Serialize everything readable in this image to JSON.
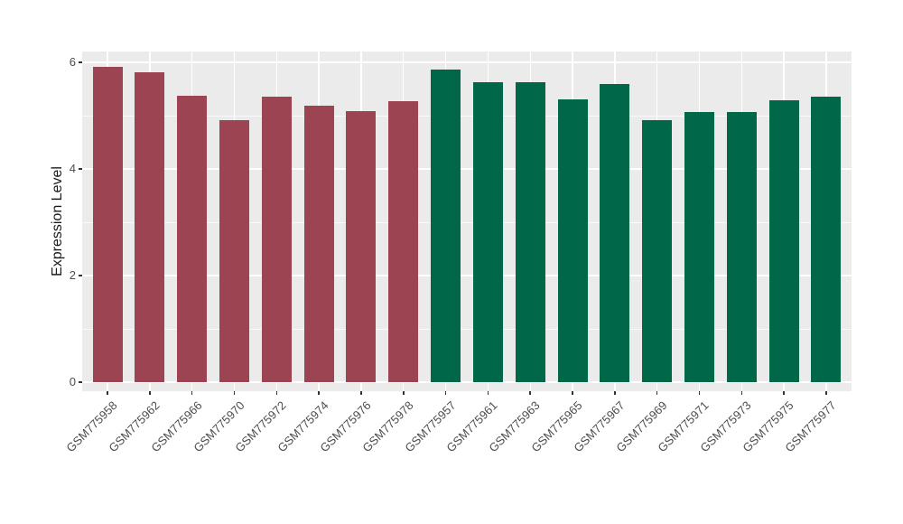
{
  "chart_data": {
    "type": "bar",
    "title": "",
    "xlabel": "",
    "ylabel": "Expression Level",
    "ylim": [
      0,
      6.2
    ],
    "grid": true,
    "legend": false,
    "panel_bg": "#EBEBEB",
    "grid_color": "#FFFFFF",
    "yticks": {
      "values": [
        0,
        2,
        4,
        6
      ],
      "labels": [
        "0",
        "2",
        "4",
        "6"
      ]
    },
    "yminor": [
      1,
      3,
      5
    ],
    "categories": [
      "GSM775958",
      "GSM775962",
      "GSM775966",
      "GSM775970",
      "GSM775972",
      "GSM775974",
      "GSM775976",
      "GSM775978",
      "GSM775957",
      "GSM775961",
      "GSM775963",
      "GSM775965",
      "GSM775967",
      "GSM775969",
      "GSM775971",
      "GSM775973",
      "GSM775975",
      "GSM775977"
    ],
    "values": [
      5.92,
      5.81,
      5.38,
      4.92,
      5.36,
      5.18,
      5.09,
      5.27,
      5.86,
      5.62,
      5.63,
      5.3,
      5.6,
      4.91,
      5.06,
      5.07,
      5.29,
      5.35
    ],
    "groups": [
      "group1",
      "group1",
      "group1",
      "group1",
      "group1",
      "group1",
      "group1",
      "group1",
      "group2",
      "group2",
      "group2",
      "group2",
      "group2",
      "group2",
      "group2",
      "group2",
      "group2",
      "group2"
    ],
    "group_colors": {
      "group1": "#9C4451",
      "group2": "#006748"
    }
  }
}
